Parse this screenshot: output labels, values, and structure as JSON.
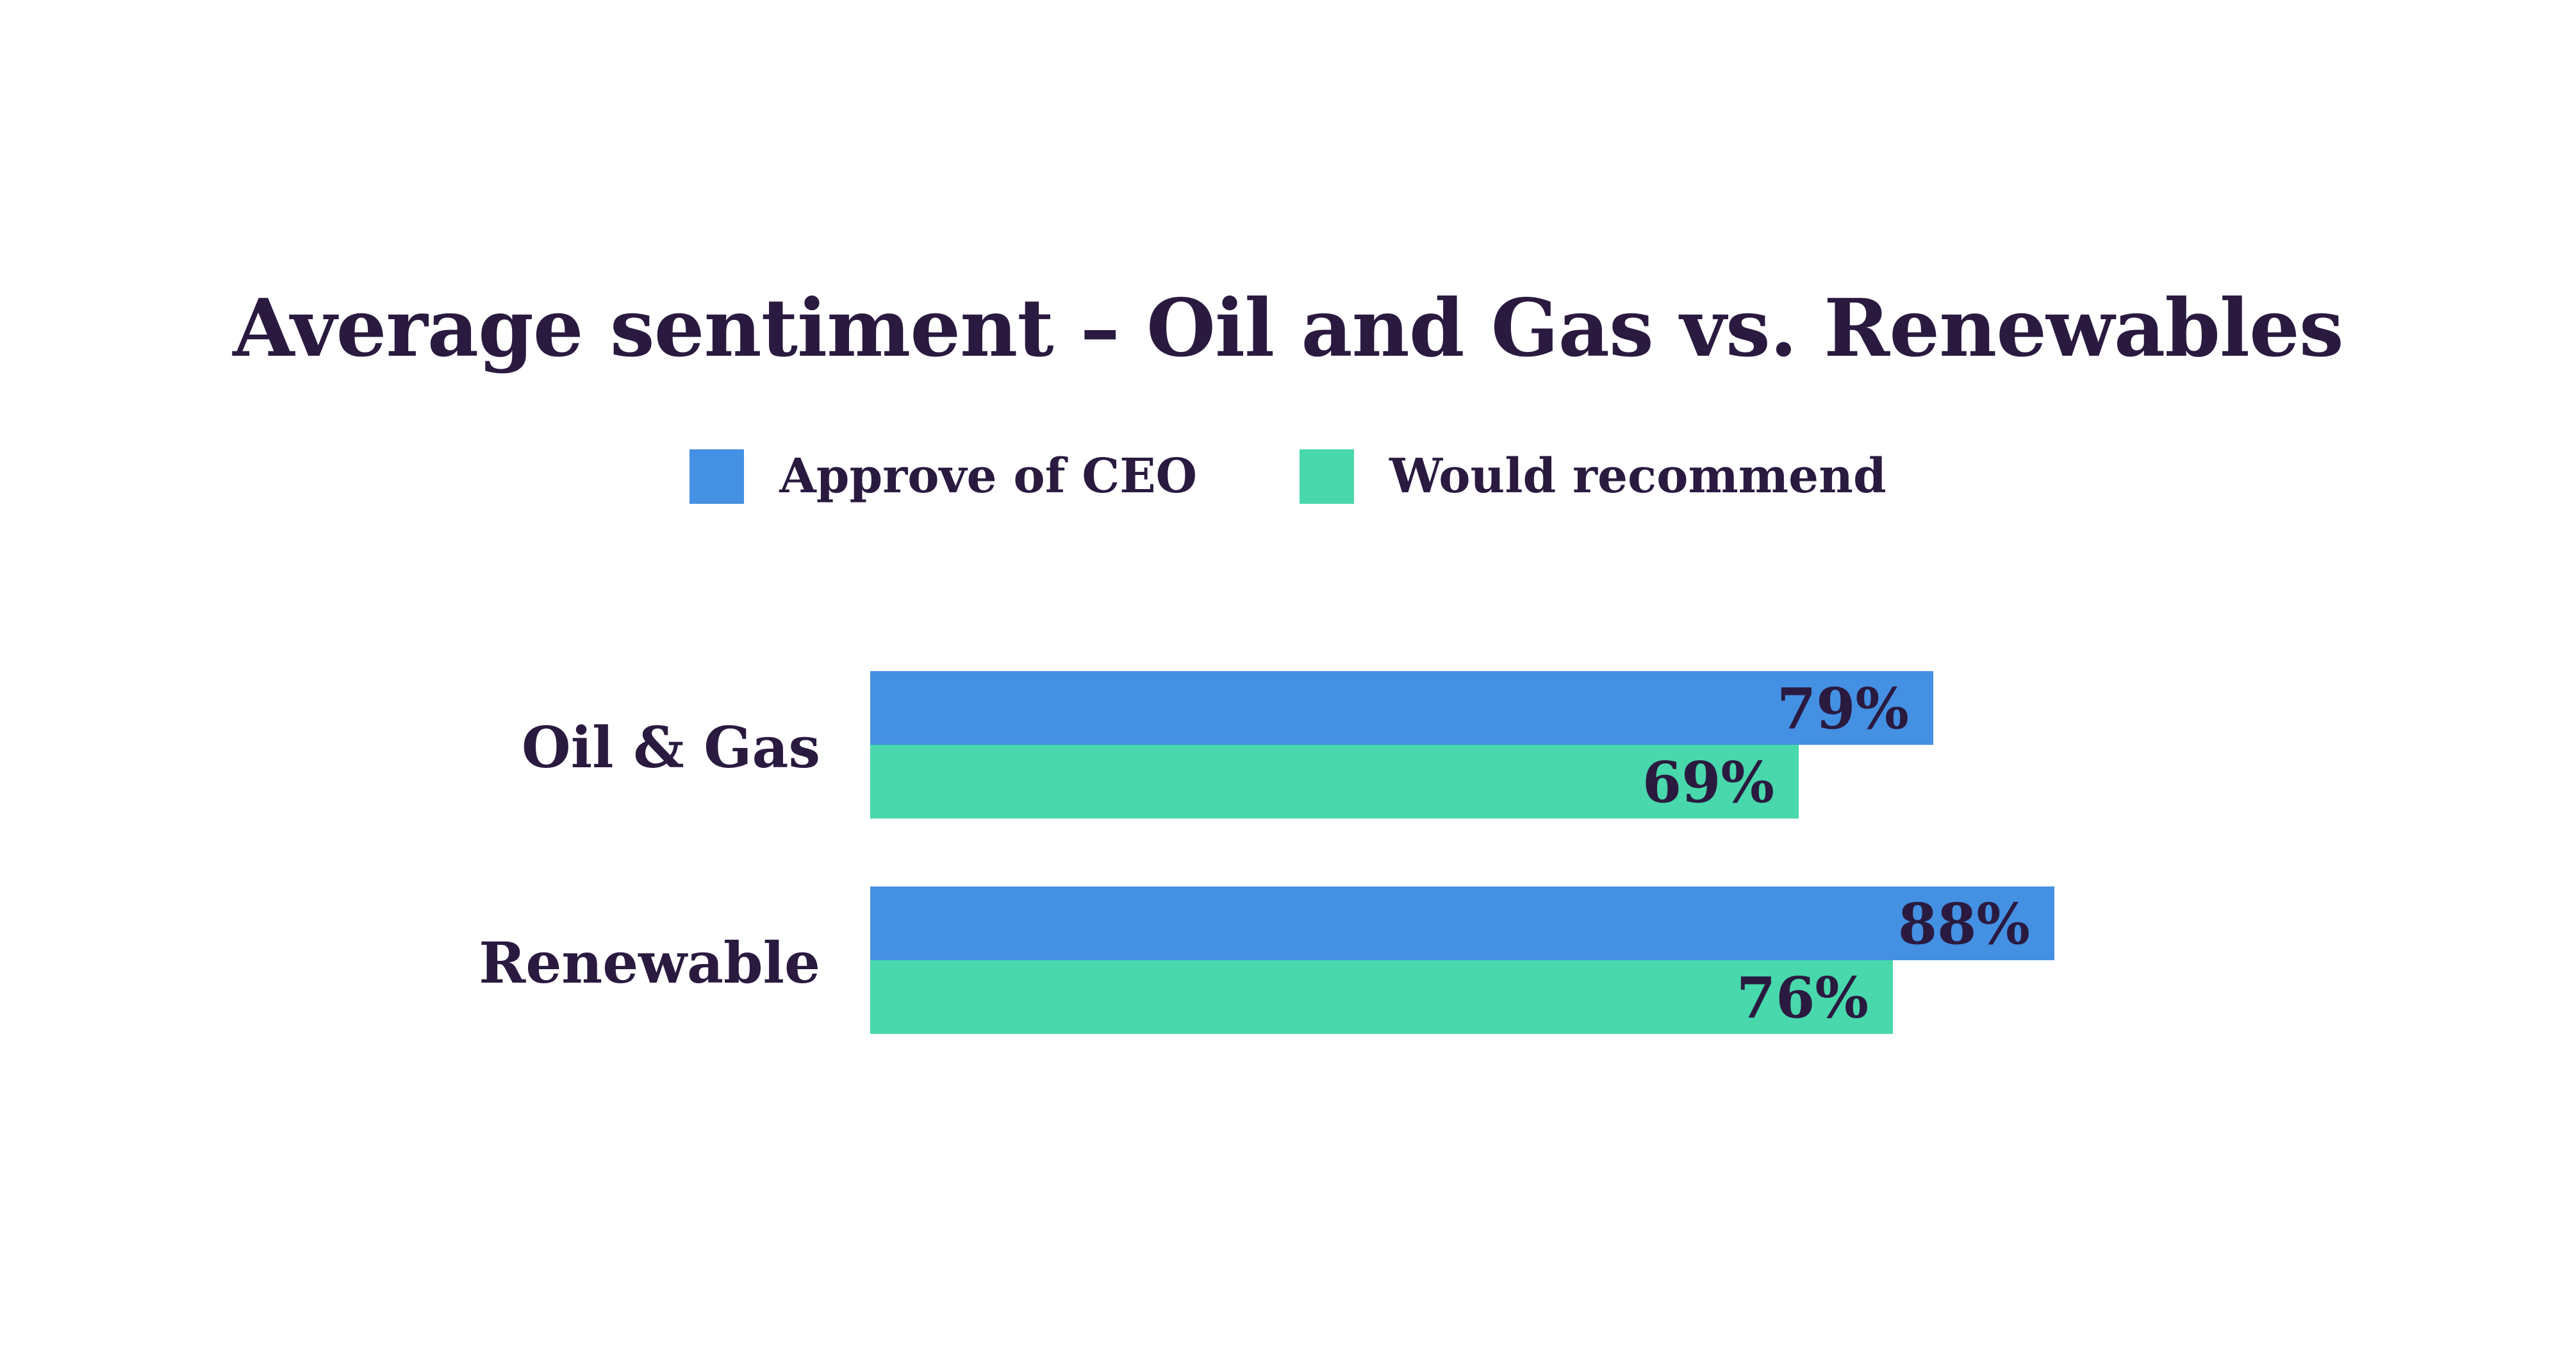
{
  "chart_data": {
    "type": "bar",
    "orientation": "horizontal",
    "title": "Average sentiment – Oil and Gas vs. Renewables",
    "categories": [
      "Oil & Gas",
      "Renewable"
    ],
    "series": [
      {
        "name": "Approve of CEO",
        "color": "#4490e2",
        "values": [
          79,
          88
        ],
        "labels": [
          "79%",
          "88%"
        ]
      },
      {
        "name": "Would recommend",
        "color": "#48d8ab",
        "values": [
          69,
          76
        ],
        "labels": [
          "69%",
          "76%"
        ]
      }
    ],
    "xlim": [
      0,
      100
    ],
    "unit": "%",
    "grid": false,
    "legend_position": "top"
  }
}
